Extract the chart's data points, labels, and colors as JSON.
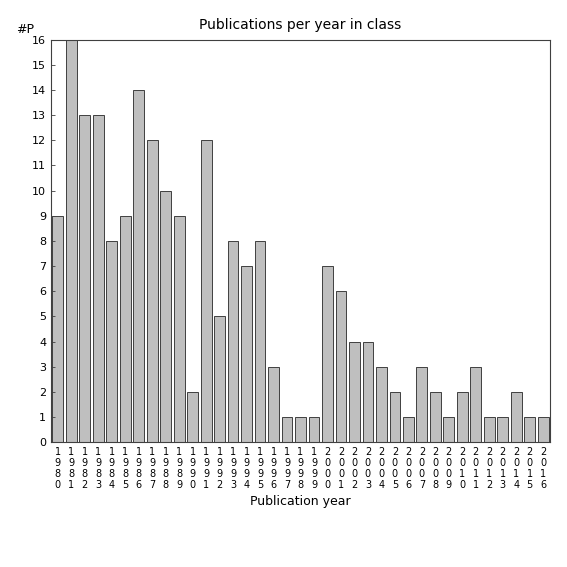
{
  "title": "Publications per year in class",
  "xlabel": "Publication year",
  "ylabel": "#P",
  "bar_color": "#bfbfbf",
  "edge_color": "#404040",
  "categories": [
    "1980",
    "1981",
    "1982",
    "1983",
    "1984",
    "1985",
    "1986",
    "1987",
    "1988",
    "1989",
    "1990",
    "1991",
    "1992",
    "1993",
    "1994",
    "1995",
    "1996",
    "1997",
    "1998",
    "1999",
    "2000",
    "2001",
    "2002",
    "2003",
    "2004",
    "2005",
    "2006",
    "2007",
    "2008",
    "2009",
    "2010",
    "2011",
    "2012",
    "2013",
    "2014",
    "2015",
    "2016"
  ],
  "values": [
    9,
    16,
    13,
    13,
    8,
    9,
    14,
    12,
    10,
    9,
    2,
    12,
    5,
    8,
    7,
    8,
    3,
    1,
    1,
    1,
    7,
    6,
    4,
    4,
    3,
    2,
    1,
    3,
    2,
    1,
    2,
    3,
    1,
    1,
    2,
    1,
    1
  ],
  "ylim": [
    0,
    16
  ],
  "yticks": [
    0,
    1,
    2,
    3,
    4,
    5,
    6,
    7,
    8,
    9,
    10,
    11,
    12,
    13,
    14,
    15,
    16
  ],
  "background_color": "#ffffff",
  "figsize": [
    5.67,
    5.67
  ],
  "dpi": 100,
  "title_fontsize": 10,
  "axis_label_fontsize": 9,
  "tick_fontsize": 8
}
